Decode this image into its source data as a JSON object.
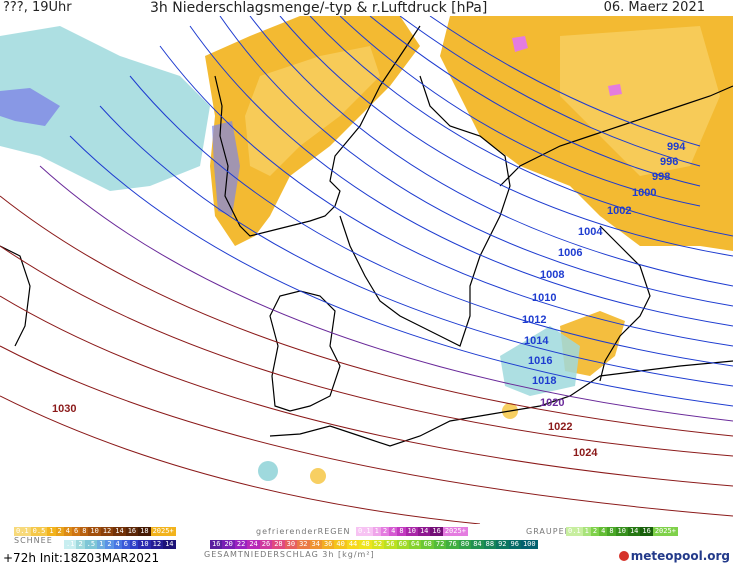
{
  "header": {
    "run": "???, 19Uhr",
    "title": "3h Niederschlagsmenge/-typ & r.Luftdruck [hPa]",
    "date": "06. Maerz 2021"
  },
  "isobars": [
    {
      "label": "994",
      "color": "#1e3cd0"
    },
    {
      "label": "996",
      "color": "#1e3cd0"
    },
    {
      "label": "998",
      "color": "#1e3cd0"
    },
    {
      "label": "1000",
      "color": "#1e3cd0"
    },
    {
      "label": "1002",
      "color": "#1e3cd0"
    },
    {
      "label": "1004",
      "color": "#1e3cd0"
    },
    {
      "label": "1006",
      "color": "#1e3cd0"
    },
    {
      "label": "1008",
      "color": "#1e3cd0"
    },
    {
      "label": "1010",
      "color": "#1e3cd0"
    },
    {
      "label": "1012",
      "color": "#1e3cd0"
    },
    {
      "label": "1014",
      "color": "#1e3cd0"
    },
    {
      "label": "1016",
      "color": "#1e3cd0"
    },
    {
      "label": "1018",
      "color": "#1e3cd0"
    },
    {
      "label": "1020",
      "color": "#6a2a9a"
    },
    {
      "label": "1022",
      "color": "#8b1a1a"
    },
    {
      "label": "1024",
      "color": "#8b1a1a"
    },
    {
      "label": "1030",
      "color": "#8b1a1a"
    }
  ],
  "legend": {
    "rain_values": [
      "0.1",
      "0.5",
      "1",
      "2",
      "4",
      "6",
      "8",
      "10",
      "12",
      "14",
      "16",
      "18",
      "2025+"
    ],
    "freezing_label": "gefrierenderREGEN",
    "freezing_values": [
      "0.1",
      "1",
      "2",
      "4",
      "8",
      "10",
      "14",
      "16",
      "2025+"
    ],
    "graupel_label": "GRAUPEL",
    "graupel_values": [
      "0.1",
      "1",
      "2",
      "4",
      "8",
      "10",
      "14",
      "16",
      "2025+"
    ],
    "snow_label": "SCHNEE",
    "snow_values": [
      ".1",
      "2",
      ".5",
      "1",
      "2",
      "4",
      "6",
      "8",
      "10",
      "12",
      "14"
    ],
    "total_label": "GESAMTNIEDERSCHLAG 3h [kg/m²]",
    "total_values": [
      "16",
      "20",
      "22",
      "24",
      "26",
      "28",
      "30",
      "32",
      "34",
      "36",
      "40",
      "44",
      "48",
      "52",
      "56",
      "60",
      "64",
      "68",
      "72",
      "76",
      "80",
      "84",
      "88",
      "92",
      "96",
      "100"
    ],
    "footer": "+72h Init:18Z03MAR2021",
    "logo": "meteopool.org"
  },
  "colors": {
    "rain": "#f2b31c",
    "snow": "#9fd9dd",
    "freezing": "#e47ce0",
    "graupel": "#7fd14a",
    "isobar_low": "#1e3cd0",
    "isobar_high": "#8b1a1a"
  }
}
